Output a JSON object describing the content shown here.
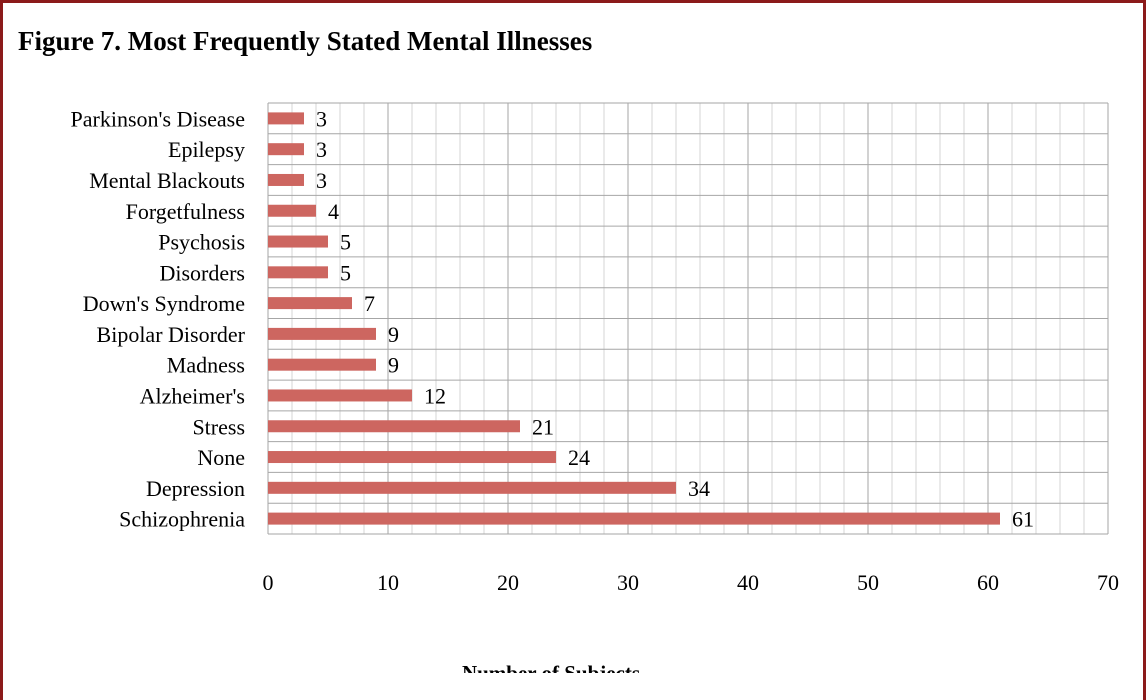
{
  "chart_data": {
    "type": "bar",
    "orientation": "horizontal",
    "title": "Figure 7. Most Frequently Stated Mental Illnesses",
    "xlabel": "Number of Subjects",
    "ylabel": "",
    "categories": [
      "Parkinson's Disease",
      "Epilepsy",
      "Mental Blackouts ",
      "Forgetfulness",
      "Psychosis",
      "Disorders",
      "Down's Syndrome",
      "Bipolar Disorder",
      "Madness",
      "Alzheimer's",
      "Stress",
      "None",
      "Depression",
      "Schizophrenia"
    ],
    "values": [
      3,
      3,
      3,
      4,
      5,
      5,
      7,
      9,
      9,
      12,
      21,
      24,
      34,
      61
    ],
    "xlim": [
      0,
      70
    ],
    "xticks": [
      0,
      10,
      20,
      30,
      40,
      50,
      60,
      70
    ],
    "grid": true,
    "data_labels": true,
    "bar_color": "#cd6660",
    "border_color": "#8b1a1a"
  }
}
